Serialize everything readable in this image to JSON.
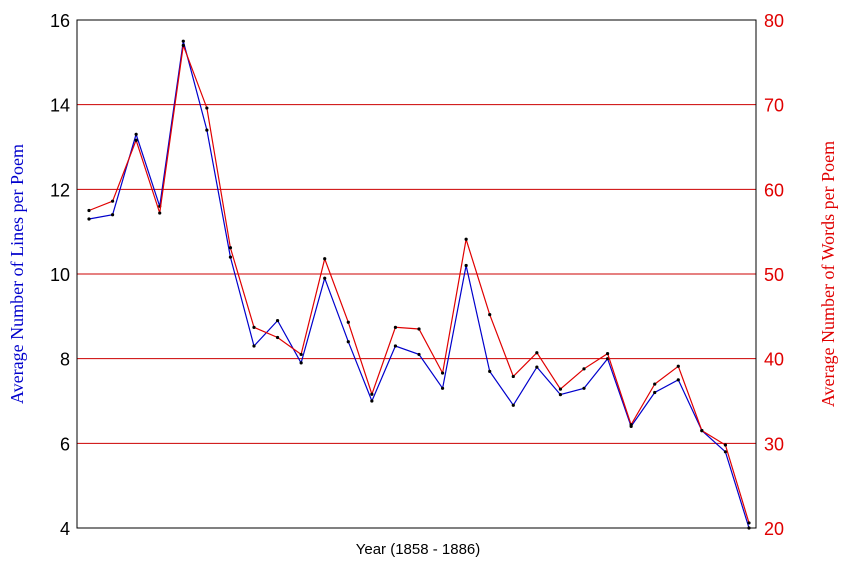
{
  "chart_data": {
    "type": "line",
    "xlabel": "Year (1858 - 1886)",
    "ylabel_left": "Average Number of Lines per Poem",
    "ylabel_right": "Average Number of Words per Poem",
    "ylim_left": [
      4,
      16
    ],
    "ylim_right": [
      20,
      80
    ],
    "yticks_left": [
      "4",
      "6",
      "8",
      "10",
      "12",
      "14",
      "16"
    ],
    "yticks_right": [
      "20",
      "30",
      "40",
      "50",
      "60",
      "70",
      "80"
    ],
    "x": [
      1858,
      1859,
      1860,
      1861,
      1862,
      1863,
      1864,
      1865,
      1866,
      1867,
      1868,
      1869,
      1870,
      1871,
      1872,
      1873,
      1874,
      1875,
      1876,
      1877,
      1878,
      1879,
      1880,
      1881,
      1882,
      1883,
      1884,
      1885,
      1886
    ],
    "grid": true,
    "series": [
      {
        "name": "Average Number of Lines per Poem",
        "axis": "left",
        "color": "#0000cc",
        "values": [
          11.3,
          11.4,
          13.3,
          11.6,
          15.5,
          13.4,
          10.4,
          8.3,
          8.9,
          7.9,
          9.9,
          8.4,
          7.0,
          8.3,
          8.1,
          7.3,
          10.2,
          7.7,
          6.9,
          7.8,
          7.15,
          7.3,
          8.0,
          6.4,
          7.2,
          7.5,
          6.3,
          5.8,
          4.0
        ]
      },
      {
        "name": "Average Number of Words per Poem",
        "axis": "right",
        "color": "#e00000",
        "values": [
          57.5,
          58.6,
          65.8,
          57.2,
          77.0,
          69.6,
          53.1,
          43.7,
          42.5,
          40.5,
          51.8,
          44.3,
          35.8,
          43.7,
          43.5,
          38.3,
          54.1,
          45.2,
          37.9,
          40.7,
          36.4,
          38.8,
          40.6,
          32.2,
          37.0,
          39.1,
          31.5,
          29.8,
          20.6
        ]
      }
    ],
    "colors": {
      "left_axis_label": "#0000cc",
      "right_axis": "#e00000",
      "grid": "#cc0000",
      "frame": "#000000"
    }
  }
}
